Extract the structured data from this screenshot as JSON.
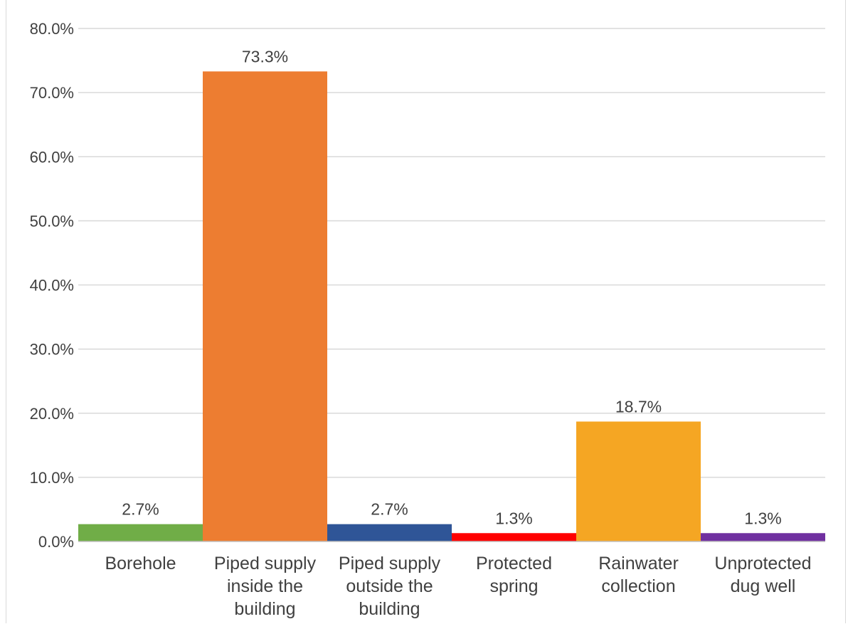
{
  "chart_data": {
    "type": "bar",
    "title": "",
    "xlabel": "",
    "ylabel": "",
    "categories": [
      "Borehole",
      "Piped supply inside the building",
      "Piped supply outside the building",
      "Protected spring",
      "Rainwater collection",
      "Unprotected dug well"
    ],
    "category_lines": [
      [
        "Borehole"
      ],
      [
        "Piped supply",
        "inside the",
        "building"
      ],
      [
        "Piped supply",
        "outside the",
        "building"
      ],
      [
        "Protected",
        "spring"
      ],
      [
        "Rainwater",
        "collection"
      ],
      [
        "Unprotected",
        "dug well"
      ]
    ],
    "values": [
      2.7,
      73.3,
      2.7,
      1.3,
      18.7,
      1.3
    ],
    "data_labels": [
      "2.7%",
      "73.3%",
      "2.7%",
      "1.3%",
      "18.7%",
      "1.3%"
    ],
    "colors": [
      "#70ad47",
      "#ed7d31",
      "#2f5597",
      "#ff0000",
      "#f5a623",
      "#7030a0"
    ],
    "ylim": [
      0,
      80
    ],
    "yticks": [
      0,
      10,
      20,
      30,
      40,
      50,
      60,
      70,
      80
    ],
    "ytick_labels": [
      "0.0%",
      "10.0%",
      "20.0%",
      "30.0%",
      "40.0%",
      "50.0%",
      "60.0%",
      "70.0%",
      "80.0%"
    ],
    "grid": true,
    "legend": "none"
  }
}
